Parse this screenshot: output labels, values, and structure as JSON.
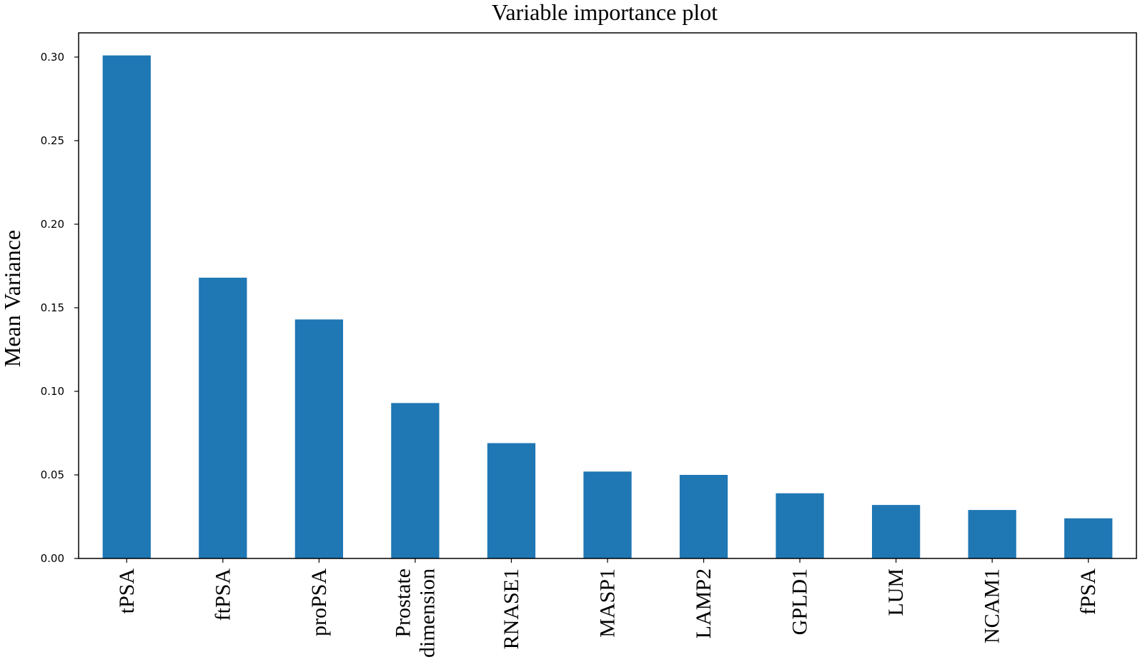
{
  "chart_data": {
    "type": "bar",
    "title": "Variable importance plot",
    "xlabel": "",
    "ylabel": "Mean Variance",
    "categories": [
      "tPSA",
      "ftPSA",
      "proPSA",
      "Prostate dimension",
      "RNASE1",
      "MASP1",
      "LAMP2",
      "GPLD1",
      "LUM",
      "NCAM1",
      "fPSA"
    ],
    "category_lines": [
      [
        "tPSA"
      ],
      [
        "ftPSA"
      ],
      [
        "proPSA"
      ],
      [
        "Prostate",
        "dimension"
      ],
      [
        "RNASE1"
      ],
      [
        "MASP1"
      ],
      [
        "LAMP2"
      ],
      [
        "GPLD1"
      ],
      [
        "LUM"
      ],
      [
        "NCAM1"
      ],
      [
        "fPSA"
      ]
    ],
    "values": [
      0.301,
      0.168,
      0.143,
      0.093,
      0.069,
      0.052,
      0.05,
      0.039,
      0.032,
      0.029,
      0.024
    ],
    "ylim": [
      0,
      0.3145
    ],
    "yticks": [
      "0.00",
      "0.05",
      "0.10",
      "0.15",
      "0.20",
      "0.25",
      "0.30"
    ],
    "grid": false,
    "legend": "none",
    "bar_color": "#1f77b4"
  }
}
